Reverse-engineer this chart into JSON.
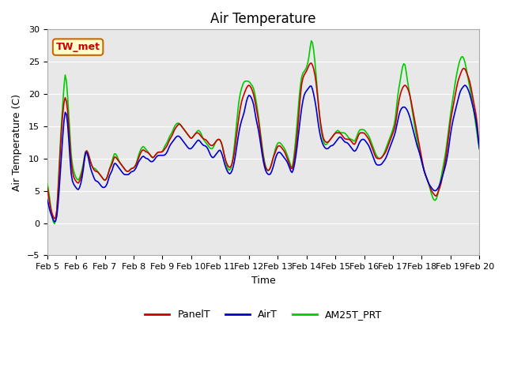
{
  "title": "Air Temperature",
  "ylabel": "Air Temperature (C)",
  "xlabel": "Time",
  "ylim": [
    -5,
    30
  ],
  "xlim": [
    0,
    360
  ],
  "yticks": [
    -5,
    0,
    5,
    10,
    15,
    20,
    25,
    30
  ],
  "xtick_labels": [
    "Feb 5",
    "Feb 6",
    "Feb 7",
    "Feb 8",
    "Feb 9",
    "Feb 10",
    "Feb 11",
    "Feb 12",
    "Feb 13",
    "Feb 14",
    "Feb 15",
    "Feb 16",
    "Feb 17",
    "Feb 18",
    "Feb 19",
    "Feb 20"
  ],
  "xtick_positions": [
    0,
    24,
    48,
    72,
    96,
    120,
    144,
    168,
    192,
    216,
    240,
    264,
    288,
    312,
    336,
    360
  ],
  "panel_color": "#cc0000",
  "air_color": "#0000cc",
  "am25_color": "#00cc00",
  "plot_bg": "#e8e8e8",
  "annotation_text": "TW_met",
  "annotation_bg": "#ffffcc",
  "annotation_border": "#cc6600",
  "annotation_text_color": "#cc0000",
  "legend_entries": [
    "PanelT",
    "AirT",
    "AM25T_PRT"
  ],
  "linewidth": 1.2,
  "title_fontsize": 12,
  "axis_fontsize": 9,
  "tick_fontsize": 8
}
